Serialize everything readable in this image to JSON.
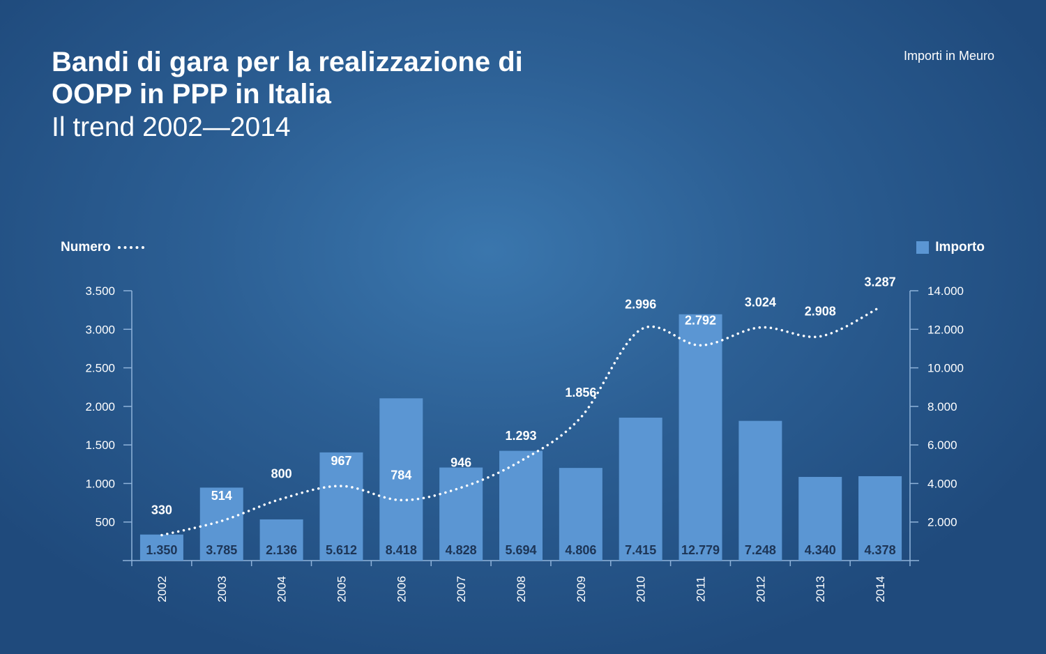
{
  "title": "Bandi di gara per la realizzazione di OOPP in PPP in Italia",
  "subtitle": "Il trend 2002—2014",
  "unit_note": "Importi in Meuro",
  "legend": {
    "line_label": "Numero",
    "bar_label": "Importo"
  },
  "colors": {
    "bar": "#5b96d3",
    "bar_label": "#1d3556",
    "line": "#ffffff",
    "axis": "#8fb3da"
  },
  "chart_data": {
    "type": "bar",
    "title": "Bandi di gara per la realizzazione di OOPP in PPP in Italia",
    "categories": [
      "2002",
      "2003",
      "2004",
      "2005",
      "2006",
      "2007",
      "2008",
      "2009",
      "2010",
      "2011",
      "2012",
      "2013",
      "2014"
    ],
    "series": [
      {
        "name": "Importo",
        "type": "bar",
        "axis": "right",
        "values": [
          1350,
          3785,
          2136,
          5612,
          8418,
          4828,
          5694,
          4806,
          7415,
          12779,
          7248,
          4340,
          4378
        ],
        "labels": [
          "1.350",
          "3.785",
          "2.136",
          "5.612",
          "8.418",
          "4.828",
          "5.694",
          "4.806",
          "7.415",
          "12.779",
          "7.248",
          "4.340",
          "4.378"
        ]
      },
      {
        "name": "Numero",
        "type": "line",
        "style": "dotted",
        "axis": "left",
        "values": [
          330,
          514,
          800,
          967,
          784,
          946,
          1293,
          1856,
          2996,
          2792,
          3024,
          2908,
          3287
        ],
        "labels": [
          "330",
          "514",
          "800",
          "967",
          "784",
          "946",
          "1.293",
          "1.856",
          "2.996",
          "2.792",
          "3.024",
          "2.908",
          "3.287"
        ]
      }
    ],
    "y_left": {
      "range": [
        0,
        3500
      ],
      "ticks": [
        500,
        1000,
        1500,
        2000,
        2500,
        3000,
        3500
      ],
      "tick_labels": [
        "500",
        "1.000",
        "1.500",
        "2.000",
        "2.500",
        "3.000",
        "3.500"
      ]
    },
    "y_right": {
      "range": [
        0,
        14000
      ],
      "ticks": [
        2000,
        4000,
        6000,
        8000,
        10000,
        12000,
        14000
      ],
      "tick_labels": [
        "2.000",
        "4.000",
        "6.000",
        "8.000",
        "10.000",
        "12.000",
        "14.000"
      ]
    },
    "grid": false,
    "legend_placement": "top"
  }
}
